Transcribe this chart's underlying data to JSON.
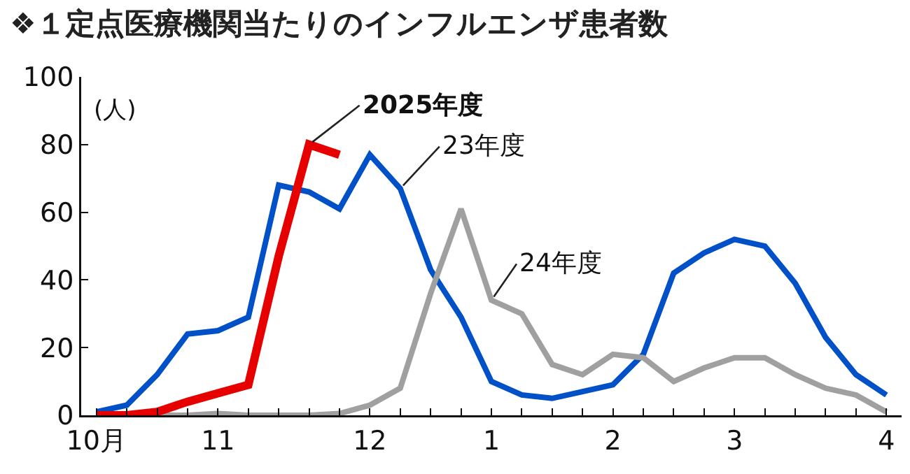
{
  "chart_data": {
    "type": "line",
    "title": "❖１定点医療機関当たりのインフルエンザ患者数",
    "annotations": [
      "(人)"
    ],
    "categories": [
      "10月",
      null,
      null,
      null,
      "11",
      null,
      null,
      null,
      null,
      "12",
      null,
      null,
      null,
      "1",
      null,
      null,
      null,
      "2",
      null,
      null,
      null,
      "3",
      null,
      null,
      null,
      null,
      "4"
    ],
    "ylim": [
      0,
      100
    ],
    "yticks": [
      0,
      20,
      40,
      60,
      80,
      100
    ],
    "grid": false,
    "legend": false,
    "marker": "none",
    "line_style": "solid",
    "series": [
      {
        "name": "23年度",
        "color": "#0050c8",
        "values": [
          1,
          3,
          12,
          24,
          25,
          29,
          68,
          66,
          61,
          77,
          67,
          43,
          29,
          10,
          6,
          5,
          7,
          9,
          18,
          42,
          48,
          52,
          50,
          39,
          23,
          12,
          6
        ]
      },
      {
        "name": "24年度",
        "color": "#a0a0a0",
        "values": [
          0,
          0,
          0,
          0,
          0.5,
          0,
          0,
          0,
          0.5,
          3,
          8,
          36,
          61,
          34,
          30,
          15,
          12,
          18,
          17,
          10,
          14,
          17,
          17,
          12,
          8,
          6,
          1
        ]
      },
      {
        "name": "2025年度",
        "color": "#e60000",
        "values": [
          0,
          0,
          1,
          4,
          6.5,
          9,
          47,
          80,
          77,
          null,
          null,
          null,
          null,
          null,
          null,
          null,
          null,
          null,
          null,
          null,
          null,
          null,
          null,
          null,
          null,
          null,
          null
        ]
      }
    ]
  }
}
